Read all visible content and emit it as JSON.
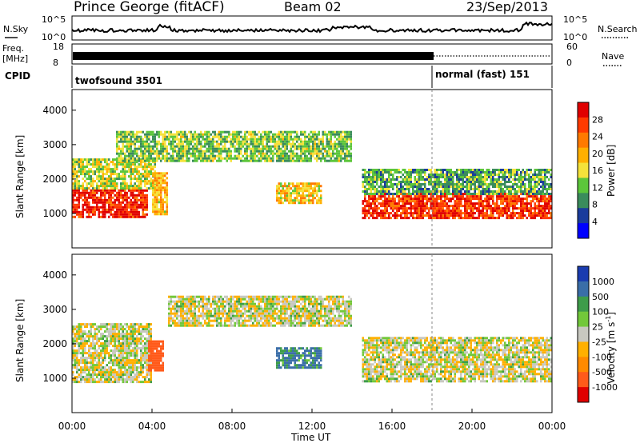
{
  "header": {
    "station": "Prince George (fitACF)",
    "beam": "Beam 02",
    "date": "23/Sep/2013"
  },
  "noise_panel": {
    "left_label": "N.Sky",
    "right_label": "N.Search",
    "left_ticks": [
      "10^5",
      "10^0"
    ],
    "right_ticks": [
      "10^5",
      "10^0"
    ]
  },
  "freq_panel": {
    "left_label_1": "Freq.",
    "left_label_2": "[MHz]",
    "right_label": "Nave",
    "left_ticks": [
      "18",
      "8"
    ],
    "right_ticks": [
      "60",
      "0"
    ]
  },
  "cpid_panel": {
    "label": "CPID",
    "modes": [
      {
        "name": "twofsound 3501",
        "start_hour": 0
      },
      {
        "name": "normal (fast) 151",
        "start_hour": 18
      }
    ]
  },
  "power_panel": {
    "ylabel": "Slant Range [km]",
    "y_ticks": [
      "1000",
      "2000",
      "3000",
      "4000"
    ],
    "colorbar_label": "Power [dB]",
    "colorbar_ticks": [
      "4",
      "8",
      "12",
      "16",
      "20",
      "24",
      "28"
    ],
    "colors": [
      "#0000ff",
      "#1a3c9c",
      "#3a8c5c",
      "#5cc63a",
      "#f4e23a",
      "#ffb000",
      "#ff7a00",
      "#ff3a00",
      "#e00000"
    ]
  },
  "velocity_panel": {
    "ylabel": "Slant Range [km]",
    "y_ticks": [
      "1000",
      "2000",
      "3000",
      "4000"
    ],
    "colorbar_label": "Velocity [m s",
    "colorbar_sup": "-1",
    "colorbar_label_end": "]",
    "colorbar_ticks": [
      "1000",
      "500",
      "100",
      "25",
      "-25",
      "-100",
      "-500",
      "-1000"
    ],
    "colors": [
      "#1a3cb0",
      "#3a6ea8",
      "#3e9c4a",
      "#72c83a",
      "#c8c8c0",
      "#ffb000",
      "#ff8a00",
      "#ff5a1a",
      "#e00000"
    ]
  },
  "x_axis": {
    "label": "Time UT",
    "ticks": [
      "00:00",
      "04:00",
      "08:00",
      "12:00",
      "16:00",
      "20:00",
      "00:00"
    ]
  },
  "chart_data": {
    "type": "heatmap",
    "x_range_hours": [
      0,
      24
    ],
    "y_range_km": [
      0,
      4600
    ],
    "power_range_db": [
      0,
      30
    ],
    "velocity_range_ms": [
      -1000,
      1000
    ],
    "power_echo_regions": [
      {
        "t0": 0.0,
        "t1": 3.8,
        "r0": 900,
        "r1": 1700,
        "power_db": 27
      },
      {
        "t0": 0.0,
        "t1": 4.2,
        "r0": 1700,
        "r1": 2600,
        "power_db": 14
      },
      {
        "t0": 2.2,
        "t1": 4.8,
        "r0": 2500,
        "r1": 3400,
        "power_db": 12
      },
      {
        "t0": 4.0,
        "t1": 4.8,
        "r0": 1000,
        "r1": 2200,
        "power_db": 18
      },
      {
        "t0": 4.8,
        "t1": 14.0,
        "r0": 2500,
        "r1": 3400,
        "power_db": 12
      },
      {
        "t0": 10.2,
        "t1": 12.4,
        "r0": 1300,
        "r1": 1900,
        "power_db": 17
      },
      {
        "t0": 14.5,
        "t1": 24.0,
        "r0": 900,
        "r1": 1600,
        "power_db": 26
      },
      {
        "t0": 14.5,
        "t1": 24.0,
        "r0": 1600,
        "r1": 2300,
        "power_db": 10
      }
    ],
    "velocity_echo_regions": [
      {
        "t0": 0.0,
        "t1": 4.0,
        "r0": 900,
        "r1": 2600,
        "velocity_ms": 0
      },
      {
        "t0": 3.8,
        "t1": 4.6,
        "r0": 1200,
        "r1": 2100,
        "velocity_ms": -700
      },
      {
        "t0": 4.8,
        "t1": 14.0,
        "r0": 2500,
        "r1": 3400,
        "velocity_ms": 0
      },
      {
        "t0": 10.2,
        "t1": 12.4,
        "r0": 1300,
        "r1": 1900,
        "velocity_ms": 120
      },
      {
        "t0": 14.5,
        "t1": 24.0,
        "r0": 900,
        "r1": 2200,
        "velocity_ms": 0
      }
    ],
    "mode_change_hour": 18
  }
}
